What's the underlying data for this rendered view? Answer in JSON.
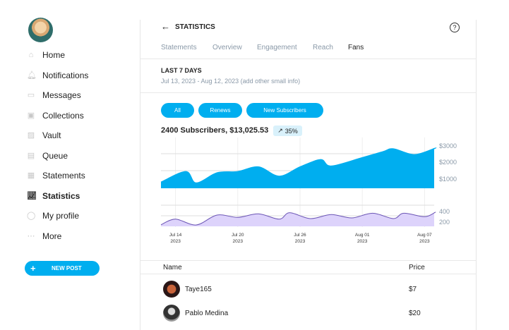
{
  "sidebar": {
    "items": [
      {
        "label": "Home",
        "icon": "home-icon",
        "glyph": "⌂"
      },
      {
        "label": "Notifications",
        "icon": "bell-icon",
        "glyph": "🔔︎"
      },
      {
        "label": "Messages",
        "icon": "message-icon",
        "glyph": "▭"
      },
      {
        "label": "Collections",
        "icon": "collections-icon",
        "glyph": "▣"
      },
      {
        "label": "Vault",
        "icon": "image-icon",
        "glyph": "▨"
      },
      {
        "label": "Queue",
        "icon": "calendar-icon",
        "glyph": "▤"
      },
      {
        "label": "Statements",
        "icon": "statements-icon",
        "glyph": "▦"
      },
      {
        "label": "Statistics",
        "icon": "chart-icon",
        "glyph": "📈︎",
        "active": true
      },
      {
        "label": "My profile",
        "icon": "profile-icon",
        "glyph": "◯"
      },
      {
        "label": "More",
        "icon": "more-icon",
        "glyph": "⋯"
      }
    ],
    "new_post": "NEW POST"
  },
  "header": {
    "title": "STATISTICS",
    "back_icon": "arrow-left-icon",
    "help_icon": "question-icon"
  },
  "tabs": [
    {
      "label": "Statements"
    },
    {
      "label": "Overview"
    },
    {
      "label": "Engagement"
    },
    {
      "label": "Reach"
    },
    {
      "label": "Fans",
      "active": true
    }
  ],
  "period": {
    "title": "LAST 7 DAYS",
    "range": "Jul 13, 2023 - Aug 12, 2023 (add other small info)"
  },
  "filters": [
    "All",
    "Renews",
    "New Subscribers"
  ],
  "summary": {
    "text": "2400 Subscribers, $13,025.53",
    "change": "35%",
    "change_icon": "arrow-up-right-icon"
  },
  "colors": {
    "accent": "#00aeef",
    "secondary_fill": "#ddd3fb",
    "secondary_line": "#6b55b5"
  },
  "chart_data": [
    {
      "type": "area",
      "ylabels": [
        "$3000",
        "$2000",
        "$1000"
      ],
      "yticks": [
        3000,
        2000,
        1000
      ],
      "ylim": [
        0,
        3300
      ],
      "x": [
        "2023-07-13",
        "2023-07-15",
        "2023-07-16",
        "2023-07-18",
        "2023-07-20",
        "2023-07-22",
        "2023-07-24",
        "2023-07-26",
        "2023-07-28",
        "2023-07-29",
        "2023-08-01",
        "2023-08-03",
        "2023-08-04",
        "2023-08-06",
        "2023-08-08",
        "2023-08-09"
      ],
      "values": [
        750,
        1375,
        700,
        1300,
        1375,
        1650,
        1100,
        1650,
        2080,
        1700,
        2200,
        2550,
        2720,
        2375,
        2750,
        2700
      ]
    },
    {
      "type": "area",
      "ylabels": [
        "400",
        "200"
      ],
      "yticks": [
        400,
        200
      ],
      "ylim": [
        0,
        480
      ],
      "x": [
        "2023-07-13",
        "2023-07-14",
        "2023-07-16",
        "2023-07-18",
        "2023-07-20",
        "2023-07-22",
        "2023-07-24",
        "2023-07-25",
        "2023-07-27",
        "2023-07-29",
        "2023-07-31",
        "2023-08-02",
        "2023-08-04",
        "2023-08-05",
        "2023-08-07",
        "2023-08-08",
        "2023-08-09"
      ],
      "values": [
        124,
        230,
        120,
        307,
        263,
        330,
        230,
        351,
        240,
        316,
        253,
        342,
        240,
        342,
        276,
        356,
        350
      ]
    }
  ],
  "xticks": [
    {
      "date": "2023-07-14",
      "line1": "Jul 14",
      "line2": "2023"
    },
    {
      "date": "2023-07-20",
      "line1": "Jul 20",
      "line2": "2023"
    },
    {
      "date": "2023-07-26",
      "line1": "Jul 26",
      "line2": "2023"
    },
    {
      "date": "2023-08-01",
      "line1": "Aug 01",
      "line2": "2023"
    },
    {
      "date": "2023-08-07",
      "line1": "Aug 07",
      "line2": "2023"
    }
  ],
  "table": {
    "columns": [
      "Name",
      "Price"
    ],
    "rows": [
      {
        "name": "Taye165",
        "price": "$7"
      },
      {
        "name": "Pablo Medina",
        "price": "$20"
      }
    ]
  }
}
